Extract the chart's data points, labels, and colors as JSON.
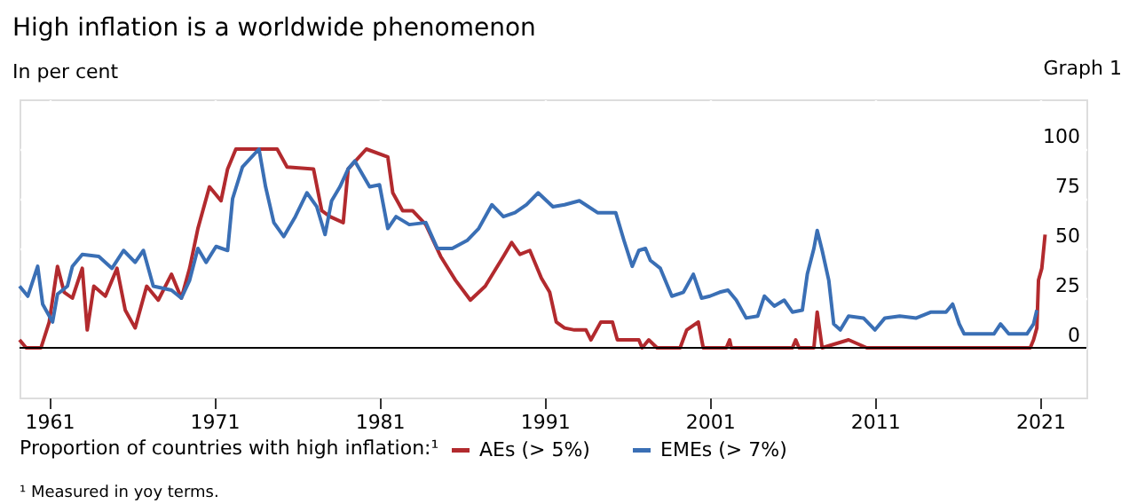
{
  "chart_data": {
    "type": "line",
    "title": "High inflation is a worldwide phenomenon",
    "subtitle": "In per cent",
    "legend_title": "Proportion of countries with high inflation:¹",
    "annotations": [
      "Graph 1",
      "¹ Measured in yoy terms."
    ],
    "xlim": [
      1959.2,
      2023.8
    ],
    "xticks": [
      1961,
      1971,
      1981,
      1991,
      2001,
      2011,
      2021
    ],
    "ylim": [
      -25,
      125
    ],
    "yticks": [
      0,
      25,
      50,
      75,
      100
    ],
    "grid": true,
    "legend": "bottom",
    "line_style": "solid",
    "marker": "none",
    "ref_lines": [
      {
        "axis": "y",
        "value": 0,
        "color": "#000000"
      }
    ],
    "series": [
      {
        "name": "AEs (> 5%)",
        "color": "#b22a2e",
        "x": [
          1959.2,
          1959.6,
          1960.5,
          1961,
          1961.5,
          1961.9,
          1962.4,
          1963,
          1963.3,
          1963.7,
          1964.4,
          1965.1,
          1965.6,
          1966.2,
          1966.9,
          1967.6,
          1968.4,
          1969,
          1969.5,
          1970,
          1970.7,
          1971.4,
          1971.8,
          1972.3,
          1974.8,
          1975.4,
          1977,
          1977.5,
          1978,
          1978.8,
          1979.1,
          1980.2,
          1981.5,
          1981.8,
          1982.4,
          1983,
          1983.8,
          1984.7,
          1985.6,
          1986.5,
          1987.4,
          1988.5,
          1989,
          1989.5,
          1990.1,
          1990.8,
          1991.3,
          1991.7,
          1992.2,
          1992.8,
          1993.5,
          1993.8,
          1994.4,
          1995.1,
          1995.4,
          1996.7,
          1996.9,
          1997.3,
          1997.8,
          1999.2,
          1999.6,
          2000.3,
          2000.6,
          2002,
          2002.2,
          2002.3,
          2006,
          2006.2,
          2006.4,
          2007.3,
          2007.5,
          2007.8,
          2009.4,
          2010.5,
          2020.4,
          2020.6,
          2020.8,
          2020.9,
          2021.1,
          2021.3
        ],
        "values": [
          4,
          0,
          0,
          13,
          41,
          28,
          25,
          40,
          9,
          31,
          26,
          40,
          19,
          10,
          31,
          24,
          37,
          25,
          40,
          60,
          81,
          74,
          90,
          100,
          100,
          91,
          90,
          69,
          66,
          63,
          90,
          100,
          96,
          78,
          69,
          69,
          62,
          46,
          34,
          24,
          31,
          46,
          53,
          47,
          49,
          35,
          28,
          13,
          10,
          9,
          9,
          4,
          13,
          13,
          4,
          4,
          0,
          4,
          0,
          0,
          9,
          13,
          0,
          0,
          4,
          0,
          0,
          4,
          0,
          0,
          18,
          0,
          4,
          0,
          0,
          4,
          10,
          34,
          40,
          57
        ]
      },
      {
        "name": "EMEs (> 7%)",
        "color": "#3a6fb5",
        "x": [
          1959.2,
          1959.7,
          1960.3,
          1960.6,
          1961.2,
          1961.5,
          1962.1,
          1962.4,
          1963,
          1964,
          1964.8,
          1965.5,
          1966.2,
          1966.7,
          1967.3,
          1968.4,
          1969,
          1969.5,
          1970,
          1970.5,
          1971.1,
          1971.8,
          1972.1,
          1972.7,
          1973.7,
          1974.1,
          1974.6,
          1975.2,
          1975.9,
          1976.6,
          1977.2,
          1977.7,
          1978.1,
          1978.6,
          1979.1,
          1979.5,
          1980.4,
          1981,
          1981.5,
          1982,
          1982.8,
          1983.8,
          1984.5,
          1985.4,
          1986.3,
          1987,
          1987.8,
          1988.5,
          1989.2,
          1989.9,
          1990.6,
          1991.5,
          1992.2,
          1993.1,
          1994.2,
          1995.3,
          1995.8,
          1996.3,
          1996.7,
          1997.1,
          1997.4,
          1998,
          1998.7,
          1999.4,
          2000,
          2000.5,
          2001,
          2001.6,
          2002.1,
          2002.6,
          2003.2,
          2003.9,
          2004.3,
          2004.9,
          2005.5,
          2006,
          2006.6,
          2006.9,
          2007.3,
          2007.5,
          2007.8,
          2008.2,
          2008.5,
          2008.9,
          2009.4,
          2010.3,
          2011,
          2011.6,
          2012.5,
          2013.5,
          2014.4,
          2015.3,
          2015.7,
          2016.1,
          2016.4,
          2018.2,
          2018.6,
          2019.1,
          2020.2,
          2020.6,
          2020.8
        ],
        "values": [
          31,
          26,
          41,
          22,
          13,
          27,
          31,
          41,
          47,
          46,
          40,
          49,
          43,
          49,
          31,
          29,
          25,
          34,
          50,
          43,
          51,
          49,
          75,
          91,
          100,
          81,
          63,
          56,
          66,
          78,
          71,
          57,
          74,
          81,
          90,
          94,
          81,
          82,
          60,
          66,
          62,
          63,
          50,
          50,
          54,
          60,
          72,
          66,
          68,
          72,
          78,
          71,
          72,
          74,
          68,
          68,
          54,
          41,
          49,
          50,
          44,
          40,
          26,
          28,
          37,
          25,
          26,
          28,
          29,
          24,
          15,
          16,
          26,
          21,
          24,
          18,
          19,
          37,
          50,
          59,
          49,
          34,
          12,
          9,
          16,
          15,
          9,
          15,
          16,
          15,
          18,
          18,
          22,
          12,
          7,
          7,
          12,
          7,
          7,
          12,
          19
        ]
      }
    ]
  }
}
